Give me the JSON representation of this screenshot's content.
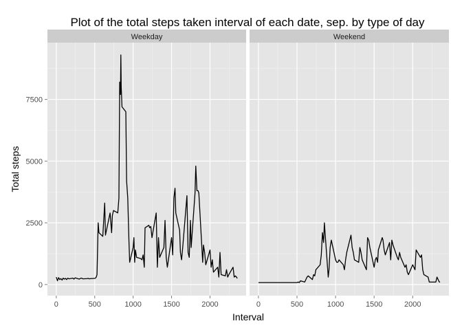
{
  "chart_data": {
    "type": "line",
    "title": "Plot of the total steps taken interval of each date, sep. by type of day",
    "xlabel": "Interval",
    "ylabel": "Total steps",
    "xlim": [
      -115,
      2470
    ],
    "ylim": [
      -450,
      9800
    ],
    "x_ticks": [
      0,
      500,
      1000,
      1500,
      2000
    ],
    "y_ticks": [
      0,
      2500,
      5000,
      7500
    ],
    "x_tick_labels": [
      "0",
      "500",
      "1000",
      "1500",
      "2000"
    ],
    "y_tick_labels": [
      "0",
      "2500",
      "5000",
      "7500"
    ],
    "grid": true,
    "background": "#e5e5e5",
    "strip_background": "#cccccc",
    "line_color": "#000000",
    "panels": [
      {
        "strip": "Weekday",
        "x": [
          0,
          15,
          30,
          45,
          60,
          75,
          90,
          105,
          120,
          135,
          150,
          165,
          180,
          200,
          215,
          230,
          245,
          300,
          315,
          330,
          345,
          400,
          415,
          430,
          445,
          500,
          510,
          520,
          530,
          545,
          555,
          605,
          630,
          640,
          700,
          720,
          730,
          745,
          800,
          815,
          825,
          835,
          840,
          845,
          855,
          905,
          915,
          930,
          945,
          955,
          1000,
          1010,
          1020,
          1030,
          1045,
          1100,
          1115,
          1130,
          1145,
          1155,
          1205,
          1215,
          1230,
          1245,
          1300,
          1315,
          1330,
          1345,
          1400,
          1415,
          1430,
          1445,
          1500,
          1515,
          1530,
          1545,
          1555,
          1605,
          1615,
          1630,
          1645,
          1700,
          1715,
          1730,
          1745,
          1755,
          1805,
          1815,
          1830,
          1845,
          1855,
          1905,
          1915,
          1930,
          1945,
          2000,
          2015,
          2030,
          2045,
          2100,
          2115,
          2130,
          2145,
          2200,
          2215,
          2230,
          2245,
          2300,
          2315,
          2330,
          2345,
          2355
        ],
        "y": [
          300,
          150,
          280,
          200,
          240,
          180,
          260,
          220,
          250,
          200,
          260,
          230,
          240,
          250,
          260,
          220,
          270,
          220,
          250,
          260,
          230,
          240,
          250,
          230,
          240,
          250,
          260,
          300,
          400,
          2500,
          2100,
          1950,
          3300,
          2000,
          2900,
          2100,
          2800,
          3000,
          2900,
          3500,
          8200,
          7700,
          9300,
          8000,
          7200,
          7000,
          4200,
          3500,
          1800,
          900,
          1500,
          1900,
          900,
          1400,
          1100,
          1050,
          1000,
          1200,
          700,
          2300,
          2400,
          2300,
          2350,
          1900,
          2900,
          700,
          1900,
          1100,
          1500,
          2600,
          1100,
          700,
          1900,
          1200,
          3500,
          3900,
          2900,
          2200,
          1300,
          1000,
          1500,
          3600,
          1300,
          1100,
          2600,
          1500,
          3700,
          4800,
          3800,
          3800,
          3700,
          900,
          1600,
          1300,
          800,
          1400,
          700,
          1000,
          500,
          700,
          300,
          1300,
          400,
          350,
          600,
          300,
          400,
          700,
          300,
          350,
          300,
          250
        ]
      },
      {
        "strip": "Weekend",
        "x": [
          0,
          15,
          30,
          45,
          60,
          75,
          100,
          200,
          300,
          400,
          500,
          515,
          530,
          545,
          600,
          615,
          630,
          645,
          700,
          715,
          730,
          745,
          800,
          815,
          830,
          845,
          855,
          905,
          915,
          930,
          945,
          1000,
          1015,
          1030,
          1045,
          1100,
          1115,
          1130,
          1145,
          1200,
          1215,
          1230,
          1245,
          1300,
          1315,
          1330,
          1345,
          1400,
          1415,
          1430,
          1445,
          1500,
          1515,
          1530,
          1545,
          1555,
          1605,
          1615,
          1630,
          1645,
          1700,
          1715,
          1730,
          1745,
          1800,
          1815,
          1830,
          1845,
          1900,
          1915,
          1930,
          1945,
          2000,
          2015,
          2030,
          2045,
          2100,
          2115,
          2130,
          2145,
          2200,
          2215,
          2230,
          2245,
          2300,
          2315,
          2330,
          2345,
          2355
        ],
        "y": [
          80,
          80,
          80,
          80,
          80,
          80,
          80,
          80,
          80,
          80,
          80,
          100,
          80,
          150,
          100,
          200,
          300,
          350,
          200,
          400,
          350,
          600,
          800,
          1200,
          2100,
          1700,
          2500,
          300,
          600,
          1500,
          1800,
          1000,
          900,
          900,
          1000,
          800,
          600,
          1000,
          1300,
          2000,
          1500,
          1300,
          1000,
          900,
          1500,
          1300,
          1000,
          600,
          1900,
          1800,
          1500,
          700,
          1000,
          1100,
          900,
          1400,
          1900,
          1800,
          1400,
          1200,
          1700,
          1000,
          1800,
          1600,
          1100,
          1000,
          1300,
          1100,
          700,
          800,
          500,
          400,
          800,
          700,
          600,
          1400,
          1100,
          1200,
          600,
          400,
          300,
          100,
          100,
          100,
          100,
          300,
          200,
          100,
          100
        ]
      }
    ]
  }
}
